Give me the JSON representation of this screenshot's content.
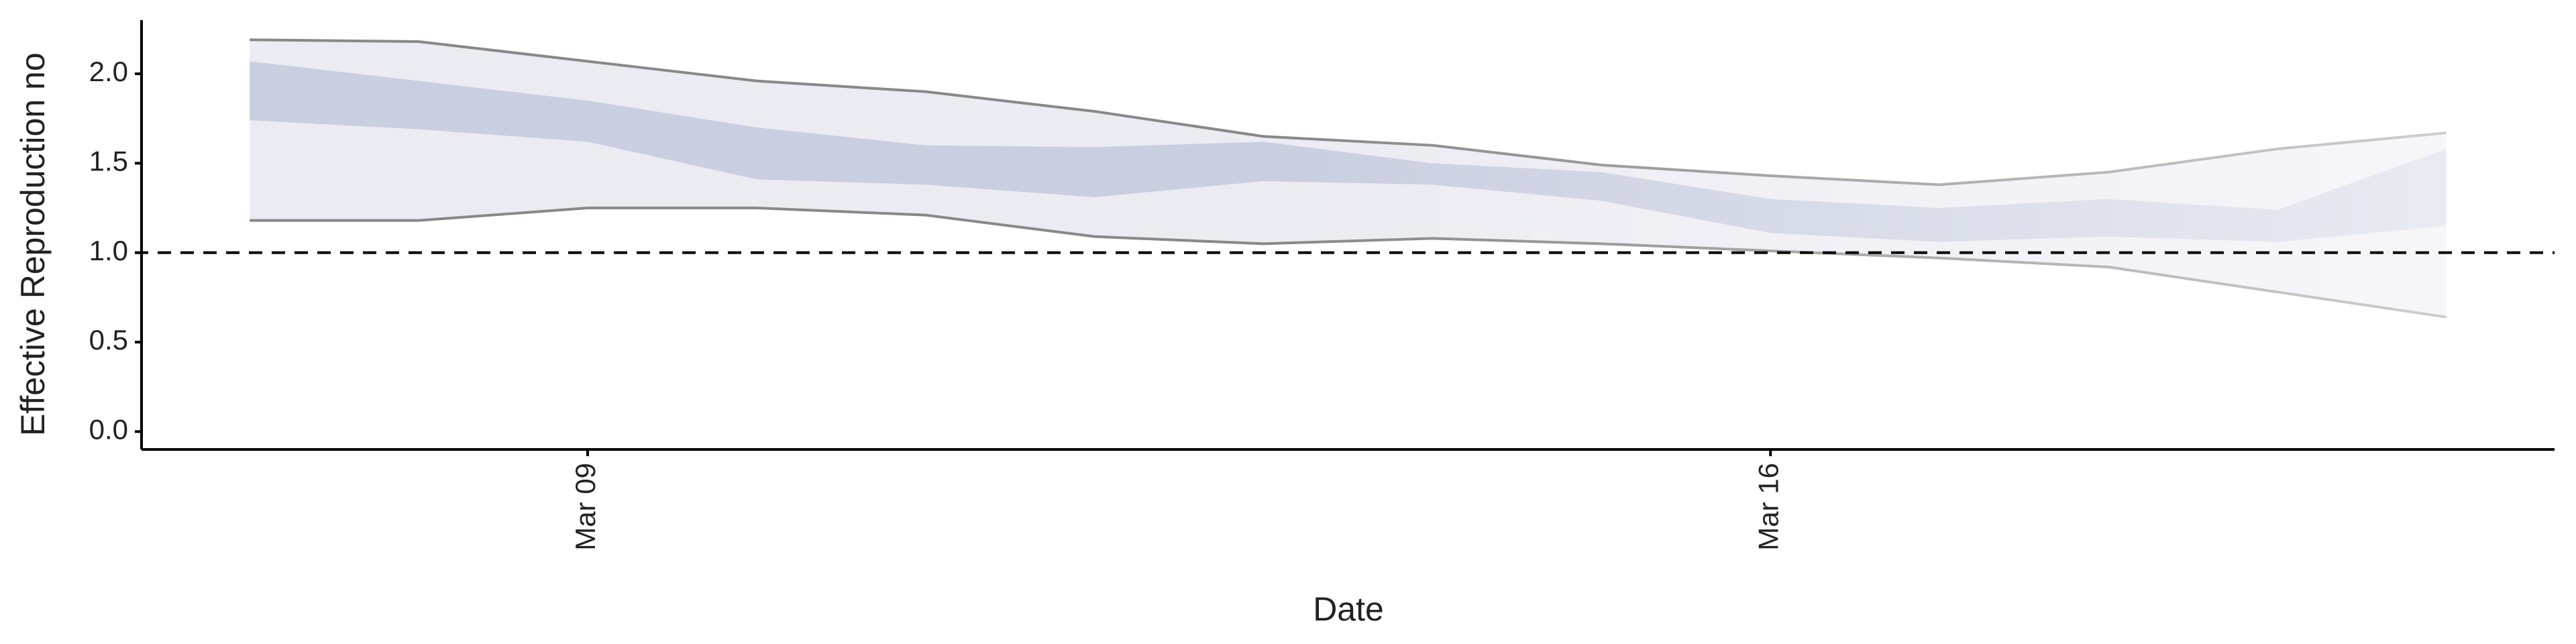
{
  "chart_data": {
    "type": "ribbon",
    "y_label": "Effective Reproduction no",
    "x_label": "Date",
    "categories": [
      null,
      null,
      "Mar 09",
      null,
      null,
      null,
      null,
      null,
      null,
      "Mar 16",
      null,
      null,
      null,
      null
    ],
    "bands": [
      {
        "color": "#ebebf2",
        "line_color": "#888888",
        "upper": [
          2.19,
          2.18,
          2.07,
          1.96,
          1.9,
          1.79,
          1.65,
          1.6,
          1.49,
          1.43,
          1.38,
          1.45,
          1.58,
          1.67
        ],
        "lower": [
          1.18,
          1.18,
          1.25,
          1.25,
          1.21,
          1.09,
          1.05,
          1.08,
          1.05,
          1.01,
          0.97,
          0.92,
          0.78,
          0.64
        ]
      },
      {
        "color": "#c9cee0",
        "upper": [
          2.07,
          1.96,
          1.85,
          1.7,
          1.6,
          1.59,
          1.62,
          1.5,
          1.45,
          1.3,
          1.25,
          1.3,
          1.24,
          1.58
        ],
        "lower": [
          1.74,
          1.69,
          1.62,
          1.41,
          1.38,
          1.31,
          1.4,
          1.38,
          1.29,
          1.11,
          1.06,
          1.09,
          1.06,
          1.15
        ]
      }
    ],
    "hline": 1,
    "ylim": [
      -0.1,
      2.3
    ],
    "yticks": [
      {
        "value": 0,
        "label": "0.0"
      },
      {
        "value": 0.5,
        "label": "0.5"
      },
      {
        "value": 1,
        "label": "1.0"
      },
      {
        "value": 1.5,
        "label": "1.5"
      },
      {
        "value": 2,
        "label": "2.0"
      }
    ]
  }
}
